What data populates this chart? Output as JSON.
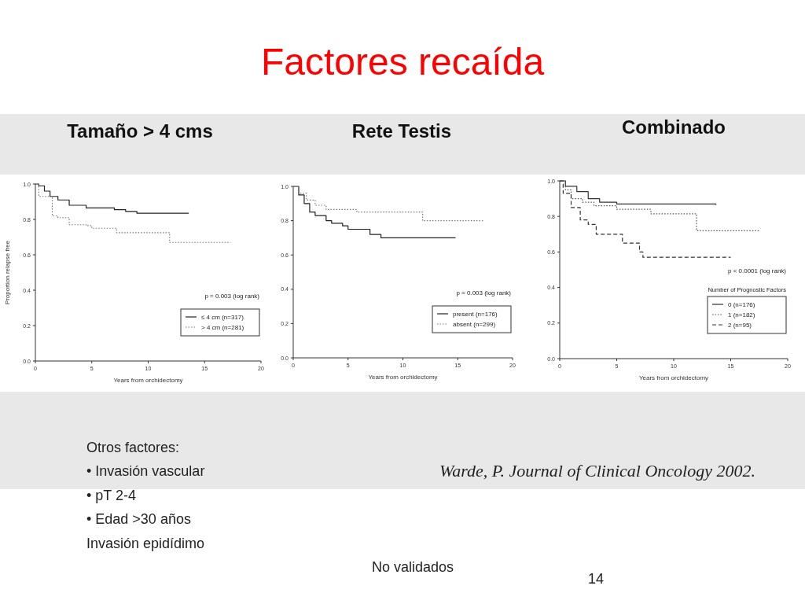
{
  "chart_data": [
    {
      "type": "other",
      "title": "Factores recaída",
      "annotations": [
        "Otros factores:",
        "• Invasión vascular",
        "• pT 2-4",
        "• Edad >30 años",
        "Invasión epidídimo",
        "No validados",
        "Warde, P. Journal of Clinical Oncology 2002.",
        "14"
      ]
    },
    {
      "type": "step",
      "title": "Tamaño > 4 cms",
      "xlabel": "Years from orchidectomy",
      "ylabel": "Proportion relapse free",
      "xlim": [
        0,
        20
      ],
      "ylim": [
        0,
        1
      ],
      "xticks": [
        0,
        5,
        10,
        15,
        20
      ],
      "yticks": [
        {
          "value": 0,
          "label": "0.0"
        },
        {
          "value": 0.2,
          "label": "0.2"
        },
        {
          "value": 0.4,
          "label": "0.4"
        },
        {
          "value": 0.6,
          "label": "0.6"
        },
        {
          "value": 0.8,
          "label": "0.8"
        },
        {
          "value": 1,
          "label": "1.0"
        }
      ],
      "grid": false,
      "legend": "bottom right",
      "annotations": [
        "p = 0.003 (log rank)"
      ],
      "series": [
        {
          "name": "≤ 4 cm (n=317)",
          "color": "#222222",
          "line_style": "solid",
          "x": [
            0,
            0.3,
            0.8,
            1.3,
            2,
            3,
            4.5,
            7,
            8,
            9,
            13.6
          ],
          "values": [
            1,
            0.99,
            0.96,
            0.93,
            0.91,
            0.88,
            0.865,
            0.855,
            0.845,
            0.835,
            0.835
          ]
        },
        {
          "name": "> 4 cm (n=281)",
          "color": "#777777",
          "line_style": "dotted",
          "x": [
            0,
            0.3,
            1.5,
            2,
            3,
            4.5,
            5,
            7.2,
            11.9,
            17.3
          ],
          "values": [
            1,
            0.93,
            0.82,
            0.81,
            0.77,
            0.765,
            0.75,
            0.725,
            0.67,
            0.67
          ]
        }
      ]
    },
    {
      "type": "step",
      "title": "Rete Testis",
      "xlabel": "Years from orchidectomy",
      "xlim": [
        0,
        20
      ],
      "ylim": [
        0,
        1
      ],
      "xticks": [
        0,
        5,
        10,
        15,
        20
      ],
      "yticks": [
        {
          "value": 0,
          "label": "0.0"
        },
        {
          "value": 0.2,
          "label": "0.2"
        },
        {
          "value": 0.4,
          "label": "0.4"
        },
        {
          "value": 0.6,
          "label": "0.6"
        },
        {
          "value": 0.8,
          "label": "0.8"
        },
        {
          "value": 1,
          "label": "1.0"
        }
      ],
      "grid": false,
      "legend": "bottom right",
      "annotations": [
        "p = 0.003 (log rank)"
      ],
      "series": [
        {
          "name": "present (n=176)",
          "color": "#222222",
          "line_style": "solid",
          "x": [
            0,
            0.5,
            1,
            1.5,
            2,
            3,
            3.5,
            4.5,
            5,
            7,
            8,
            14.8
          ],
          "values": [
            1,
            0.95,
            0.9,
            0.85,
            0.83,
            0.8,
            0.785,
            0.77,
            0.75,
            0.72,
            0.7,
            0.7
          ]
        },
        {
          "name": "absent (n=299)",
          "color": "#777777",
          "line_style": "dotted",
          "x": [
            0,
            0.5,
            1.2,
            2,
            3,
            5.8,
            11.8,
            17.3
          ],
          "values": [
            1,
            0.96,
            0.92,
            0.89,
            0.865,
            0.85,
            0.8,
            0.8
          ]
        }
      ]
    },
    {
      "type": "step",
      "title": "Combinado",
      "xlabel": "Years from orchidectomy",
      "xlim": [
        0,
        20
      ],
      "ylim": [
        0,
        1
      ],
      "xticks": [
        0,
        5,
        10,
        15,
        20
      ],
      "yticks": [
        {
          "value": 0,
          "label": "0.0"
        },
        {
          "value": 0.2,
          "label": "0.2"
        },
        {
          "value": 0.4,
          "label": "0.4"
        },
        {
          "value": 0.6,
          "label": "0.6"
        },
        {
          "value": 0.8,
          "label": "0.8"
        },
        {
          "value": 1,
          "label": "1.0"
        }
      ],
      "grid": false,
      "legend": "bottom right",
      "legend_title": "Number of Prognostic Factors",
      "annotations": [
        "p < 0.0001 (log rank)"
      ],
      "series": [
        {
          "name": "0 (n=176)",
          "color": "#333333",
          "line_style": "solid",
          "x": [
            0,
            0.5,
            1.5,
            2.5,
            3.5,
            5,
            13.7
          ],
          "values": [
            1,
            0.97,
            0.94,
            0.9,
            0.88,
            0.87,
            0.865
          ]
        },
        {
          "name": "1 (n=182)",
          "color": "#555555",
          "line_style": "dotted",
          "x": [
            0,
            0.5,
            1,
            2,
            3,
            5,
            8,
            12,
            17.5
          ],
          "values": [
            1,
            0.95,
            0.9,
            0.88,
            0.86,
            0.84,
            0.815,
            0.72,
            0.72
          ]
        },
        {
          "name": "2 (n=95)",
          "color": "#333333",
          "line_style": "dashed",
          "x": [
            0,
            0.3,
            1,
            1.8,
            2.5,
            3.2,
            5.5,
            7,
            7.3,
            15
          ],
          "values": [
            1,
            0.93,
            0.85,
            0.78,
            0.755,
            0.7,
            0.65,
            0.6,
            0.57,
            0.57
          ]
        }
      ]
    }
  ]
}
